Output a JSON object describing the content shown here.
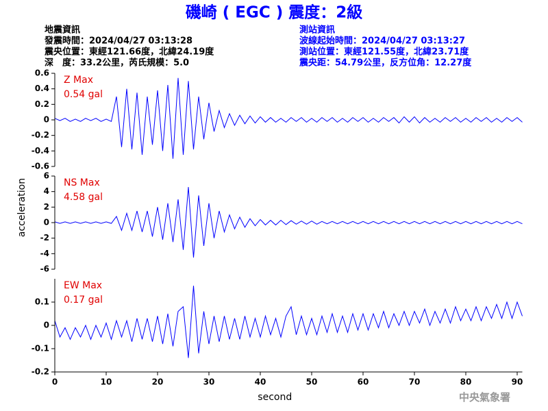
{
  "header": {
    "title": "磯崎 ( EGC ) 震度：2級",
    "left": [
      "地震資訊",
      "發震時間：2024/04/27 03:13:28",
      "震央位置：東經121.66度，北緯24.19度",
      "深　度：33.2公里，芮氏規模：5.0"
    ],
    "right": [
      "測站資訊",
      "波線起始時間：2024/04/27 03:13:27",
      "測站位置：東經121.55度，北緯23.71度",
      "震央距：54.79公里，反方位角：12.27度"
    ]
  },
  "y_label": "acceleration",
  "footer": "中央氣象署",
  "chart_data": [
    {
      "type": "line",
      "annotations": [
        "Z Max",
        "0.54 gal"
      ],
      "xlim": [
        0,
        91
      ],
      "ylim": [
        -0.6,
        0.6
      ],
      "yticks": [
        -0.6,
        -0.4,
        -0.2,
        0,
        0.2,
        0.4,
        0.6
      ],
      "x": [
        0,
        1,
        2,
        3,
        4,
        5,
        6,
        7,
        8,
        9,
        10,
        11,
        12,
        13,
        14,
        15,
        16,
        17,
        18,
        19,
        20,
        21,
        22,
        23,
        24,
        25,
        26,
        27,
        28,
        29,
        30,
        31,
        32,
        33,
        34,
        35,
        36,
        37,
        38,
        39,
        40,
        41,
        42,
        43,
        44,
        45,
        46,
        47,
        48,
        49,
        50,
        51,
        52,
        53,
        54,
        55,
        56,
        57,
        58,
        59,
        60,
        61,
        62,
        63,
        64,
        65,
        66,
        67,
        68,
        69,
        70,
        71,
        72,
        73,
        74,
        75,
        76,
        77,
        78,
        79,
        80,
        81,
        82,
        83,
        84,
        85,
        86,
        87,
        88,
        89,
        90,
        91
      ],
      "series": [
        {
          "color": "#0000ff",
          "values": [
            0.02,
            -0.01,
            0.02,
            -0.02,
            0.01,
            -0.02,
            0.02,
            -0.01,
            0.02,
            -0.02,
            0.01,
            -0.02,
            0.3,
            -0.35,
            0.4,
            -0.38,
            0.35,
            -0.45,
            0.3,
            -0.32,
            0.38,
            -0.4,
            0.45,
            -0.5,
            0.54,
            -0.45,
            0.5,
            -0.38,
            0.3,
            -0.25,
            0.22,
            -0.15,
            0.12,
            -0.1,
            0.08,
            -0.07,
            0.06,
            -0.05,
            0.05,
            -0.04,
            0.04,
            -0.03,
            0.03,
            -0.03,
            0.02,
            -0.03,
            0.03,
            -0.02,
            0.03,
            -0.03,
            0.02,
            -0.03,
            0.03,
            -0.02,
            0.03,
            -0.03,
            0.02,
            -0.03,
            0.03,
            -0.02,
            0.03,
            -0.03,
            0.02,
            -0.03,
            0.03,
            -0.02,
            0.03,
            -0.04,
            0.04,
            -0.03,
            0.04,
            -0.04,
            0.03,
            -0.03,
            0.02,
            -0.03,
            0.03,
            -0.02,
            0.03,
            -0.03,
            0.02,
            -0.03,
            0.03,
            -0.02,
            0.03,
            -0.03,
            0.02,
            -0.03,
            0.03,
            -0.02,
            0.03,
            -0.03
          ]
        }
      ]
    },
    {
      "type": "line",
      "annotations": [
        "NS Max",
        "4.58 gal"
      ],
      "xlim": [
        0,
        91
      ],
      "ylim": [
        -6,
        6
      ],
      "yticks": [
        -6,
        -4,
        -2,
        0,
        2,
        4,
        6
      ],
      "x": [
        0,
        1,
        2,
        3,
        4,
        5,
        6,
        7,
        8,
        9,
        10,
        11,
        12,
        13,
        14,
        15,
        16,
        17,
        18,
        19,
        20,
        21,
        22,
        23,
        24,
        25,
        26,
        27,
        28,
        29,
        30,
        31,
        32,
        33,
        34,
        35,
        36,
        37,
        38,
        39,
        40,
        41,
        42,
        43,
        44,
        45,
        46,
        47,
        48,
        49,
        50,
        51,
        52,
        53,
        54,
        55,
        56,
        57,
        58,
        59,
        60,
        61,
        62,
        63,
        64,
        65,
        66,
        67,
        68,
        69,
        70,
        71,
        72,
        73,
        74,
        75,
        76,
        77,
        78,
        79,
        80,
        81,
        82,
        83,
        84,
        85,
        86,
        87,
        88,
        89,
        90,
        91
      ],
      "series": [
        {
          "color": "#0000ff",
          "values": [
            0.1,
            -0.1,
            0.1,
            -0.1,
            0.1,
            -0.1,
            0.1,
            -0.1,
            0.1,
            -0.1,
            0.1,
            -0.1,
            0.8,
            -1,
            1.2,
            -1,
            1.5,
            -1.2,
            1.5,
            -1.8,
            2,
            -2.2,
            2.5,
            -2.5,
            3,
            -3.5,
            4.58,
            -4.5,
            3.5,
            -3,
            2.5,
            -2,
            1.5,
            -1.2,
            1,
            -0.8,
            0.7,
            -0.6,
            0.5,
            -0.4,
            0.4,
            -0.3,
            0.3,
            -0.3,
            0.3,
            -0.25,
            0.25,
            -0.2,
            0.2,
            -0.2,
            0.2,
            -0.2,
            0.15,
            -0.15,
            0.15,
            -0.15,
            0.15,
            -0.15,
            0.15,
            -0.15,
            0.15,
            -0.15,
            0.15,
            -0.15,
            0.15,
            -0.15,
            0.15,
            -0.15,
            0.15,
            -0.15,
            0.15,
            -0.15,
            0.15,
            -0.15,
            0.15,
            -0.15,
            0.15,
            -0.15,
            0.15,
            -0.15,
            0.15,
            -0.15,
            0.15,
            -0.15,
            0.15,
            -0.15,
            0.15,
            -0.15,
            0.15,
            -0.15,
            0.15,
            -0.15
          ]
        }
      ]
    },
    {
      "type": "line",
      "annotations": [
        "EW Max",
        "0.17 gal"
      ],
      "x_label": "second",
      "xlim": [
        0,
        91
      ],
      "xticks": [
        0,
        10,
        20,
        30,
        40,
        50,
        60,
        70,
        80,
        90
      ],
      "ylim": [
        -0.2,
        0.2
      ],
      "yticks": [
        -0.2,
        -0.1,
        0,
        0.1
      ],
      "x": [
        0,
        1,
        2,
        3,
        4,
        5,
        6,
        7,
        8,
        9,
        10,
        11,
        12,
        13,
        14,
        15,
        16,
        17,
        18,
        19,
        20,
        21,
        22,
        23,
        24,
        25,
        26,
        27,
        28,
        29,
        30,
        31,
        32,
        33,
        34,
        35,
        36,
        37,
        38,
        39,
        40,
        41,
        42,
        43,
        44,
        45,
        46,
        47,
        48,
        49,
        50,
        51,
        52,
        53,
        54,
        55,
        56,
        57,
        58,
        59,
        60,
        61,
        62,
        63,
        64,
        65,
        66,
        67,
        68,
        69,
        70,
        71,
        72,
        73,
        74,
        75,
        76,
        77,
        78,
        79,
        80,
        81,
        82,
        83,
        84,
        85,
        86,
        87,
        88,
        89,
        90,
        91
      ],
      "series": [
        {
          "color": "#0000ff",
          "values": [
            0.02,
            -0.05,
            -0.01,
            -0.06,
            -0.01,
            -0.05,
            0,
            -0.06,
            0,
            -0.05,
            0.01,
            -0.06,
            0.02,
            -0.05,
            0.02,
            -0.07,
            0.03,
            -0.06,
            0.03,
            -0.07,
            0.04,
            -0.08,
            0.05,
            -0.09,
            0.06,
            0.08,
            -0.14,
            0.17,
            -0.12,
            0.06,
            -0.08,
            0.04,
            -0.07,
            0.04,
            -0.06,
            0.03,
            -0.06,
            0.04,
            -0.05,
            0.03,
            -0.05,
            0.04,
            -0.04,
            0.03,
            -0.05,
            0.04,
            0.08,
            -0.04,
            0.04,
            -0.04,
            0.03,
            -0.04,
            0.04,
            -0.03,
            0.05,
            -0.03,
            0.04,
            -0.03,
            0.05,
            -0.02,
            0.05,
            -0.02,
            0.05,
            -0.01,
            0.06,
            -0.01,
            0.05,
            0,
            0.06,
            0,
            0.06,
            0.01,
            0.07,
            0,
            0.06,
            0.01,
            0.07,
            0.01,
            0.08,
            0.02,
            0.07,
            0.02,
            0.08,
            0.02,
            0.08,
            0.03,
            0.09,
            0.03,
            0.1,
            0.03,
            0.1,
            0.04
          ]
        }
      ]
    }
  ]
}
